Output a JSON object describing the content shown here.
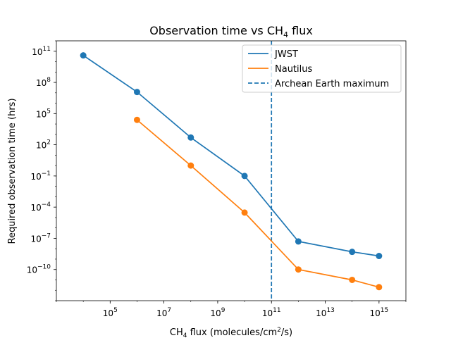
{
  "chart_data": {
    "type": "line",
    "title": "Observation time vs CH",
    "title_sub": "4",
    "title_suffix": " flux",
    "xlabel": {
      "pre": "CH",
      "sub": "4",
      "mid": " flux (molecules/cm",
      "sup": "2",
      "post": "/s)"
    },
    "ylabel": "Required observation time (hrs)",
    "x_scale": "log",
    "y_scale": "log",
    "xlim": [
      1000,
      10000000000000000
    ],
    "ylim": [
      1e-13,
      1000000000000.0
    ],
    "x_ticks": [
      {
        "exp": 5,
        "label_base": "10",
        "label_exp": "5"
      },
      {
        "exp": 7,
        "label_base": "10",
        "label_exp": "7"
      },
      {
        "exp": 9,
        "label_base": "10",
        "label_exp": "9"
      },
      {
        "exp": 11,
        "label_base": "10",
        "label_exp": "11"
      },
      {
        "exp": 13,
        "label_base": "10",
        "label_exp": "13"
      },
      {
        "exp": 15,
        "label_base": "10",
        "label_exp": "15"
      }
    ],
    "y_ticks": [
      {
        "exp": -10,
        "label_base": "10",
        "label_exp": "−10"
      },
      {
        "exp": -7,
        "label_base": "10",
        "label_exp": "−7"
      },
      {
        "exp": -4,
        "label_base": "10",
        "label_exp": "−4"
      },
      {
        "exp": -1,
        "label_base": "10",
        "label_exp": "−1"
      },
      {
        "exp": 2,
        "label_base": "10",
        "label_exp": "2"
      },
      {
        "exp": 5,
        "label_base": "10",
        "label_exp": "5"
      },
      {
        "exp": 8,
        "label_base": "10",
        "label_exp": "8"
      },
      {
        "exp": 11,
        "label_base": "10",
        "label_exp": "11"
      }
    ],
    "grid": false,
    "legend_position": "upper right",
    "series": [
      {
        "name": "JWST",
        "color": "#1f77b4",
        "x": [
          10000,
          1000000,
          100000000,
          10000000000,
          1000000000000,
          100000000000000,
          1000000000000000
        ],
        "y": [
          40000000000.0,
          12000000.0,
          500.0,
          0.1,
          5e-08,
          5e-09,
          2e-09
        ]
      },
      {
        "name": "Nautilus",
        "color": "#ff7f0e",
        "x": [
          1000000,
          100000000,
          10000000000,
          1000000000000,
          100000000000000,
          1000000000000000
        ],
        "y": [
          25000.0,
          1.0,
          3e-05,
          1e-10,
          1e-11,
          2e-12
        ]
      }
    ],
    "reference_lines": [
      {
        "name": "Archean Earth maximum",
        "orientation": "vertical",
        "x": 100000000000,
        "color": "#1f77b4",
        "style": "dashed"
      }
    ]
  }
}
